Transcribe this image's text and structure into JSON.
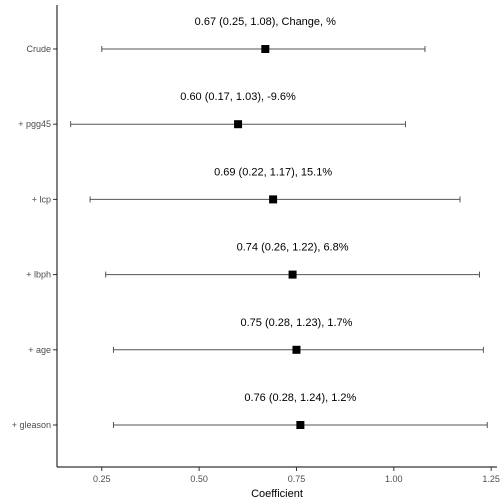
{
  "chart_data": {
    "type": "forest",
    "xlabel": "Coefficient",
    "xlim": [
      0.135,
      1.265
    ],
    "xticks": [
      0.25,
      0.5,
      0.75,
      1.0,
      1.25
    ],
    "xtick_labels": [
      "0.25",
      "0.50",
      "0.75",
      "1.00",
      "1.25"
    ],
    "rows": [
      {
        "label": "Crude",
        "estimate": 0.67,
        "lower": 0.25,
        "upper": 1.08,
        "annotation": "0.67 (0.25, 1.08),  Change, %"
      },
      {
        "label": "+ pgg45",
        "estimate": 0.6,
        "lower": 0.17,
        "upper": 1.03,
        "annotation": "0.60 (0.17, 1.03),  -9.6%"
      },
      {
        "label": "+ lcp",
        "estimate": 0.69,
        "lower": 0.22,
        "upper": 1.17,
        "annotation": "0.69 (0.22, 1.17),  15.1%"
      },
      {
        "label": "+ lbph",
        "estimate": 0.74,
        "lower": 0.26,
        "upper": 1.22,
        "annotation": "0.74 (0.26, 1.22),  6.8%"
      },
      {
        "label": "+ age",
        "estimate": 0.75,
        "lower": 0.28,
        "upper": 1.23,
        "annotation": "0.75 (0.28, 1.23),  1.7%"
      },
      {
        "label": "+ gleason",
        "estimate": 0.76,
        "lower": 0.28,
        "upper": 1.24,
        "annotation": "0.76 (0.28, 1.24),  1.2%"
      }
    ]
  }
}
